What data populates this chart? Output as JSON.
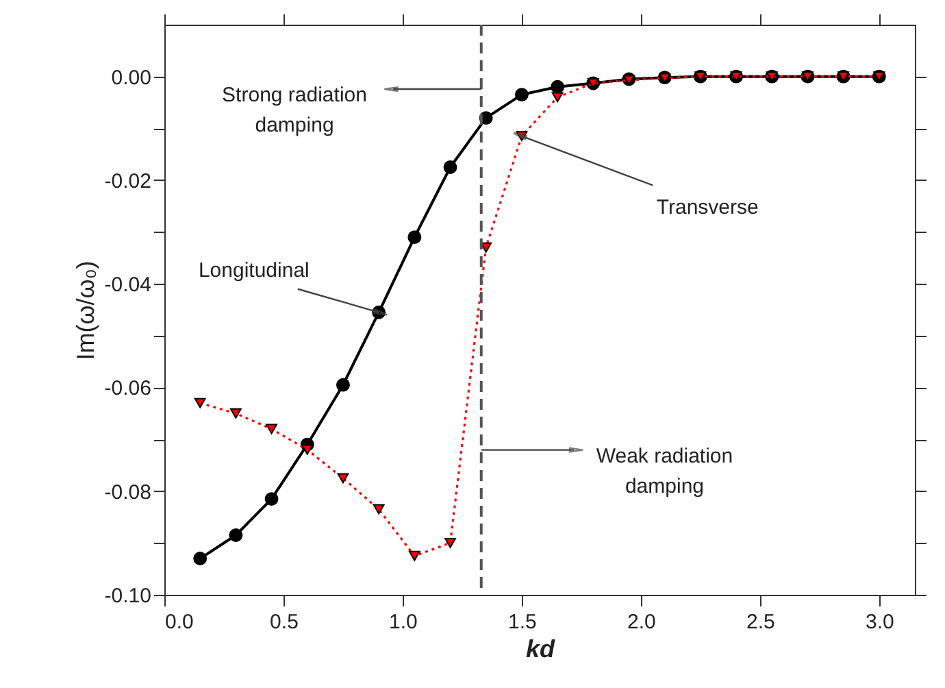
{
  "chart_data": {
    "type": "line",
    "xlabel": "kd",
    "ylabel": "Im(ω/ω₀)",
    "x": [
      0.15,
      0.3,
      0.45,
      0.6,
      0.75,
      0.9,
      1.05,
      1.2,
      1.35,
      1.5,
      1.65,
      1.8,
      1.95,
      2.1,
      2.25,
      2.4,
      2.55,
      2.7,
      2.85,
      3.0
    ],
    "series": [
      {
        "color": "#000000",
        "marker": "circle",
        "line_style": "solid",
        "values": [
          -0.093,
          -0.0885,
          -0.0815,
          -0.071,
          -0.0595,
          -0.0455,
          -0.031,
          -0.0175,
          -0.008,
          -0.0035,
          -0.002,
          -0.0013,
          -0.0005,
          -0.0002,
          0,
          0,
          0,
          0,
          0,
          0
        ]
      },
      {
        "color": "#ff0000",
        "marker": "triangle",
        "line_style": "dotted",
        "values": [
          -0.063,
          -0.065,
          -0.068,
          -0.072,
          -0.0775,
          -0.0835,
          -0.0925,
          -0.09,
          -0.033,
          -0.0115,
          -0.004,
          -0.0013,
          -0.0007,
          -0.0003,
          0,
          0,
          0,
          0,
          0,
          0
        ]
      }
    ],
    "xlim": [
      0,
      3.15
    ],
    "ylim": [
      -0.1,
      0.01
    ],
    "xticks": [
      {
        "value": 0,
        "label": "0.0"
      },
      0.5,
      {
        "value": 1,
        "label": "1.0"
      },
      1.5,
      {
        "value": 2,
        "label": "2.0"
      },
      2.5,
      {
        "value": 3,
        "label": "3.0"
      }
    ],
    "yticks": [
      {
        "value": -0.1,
        "label": "-0.10"
      },
      {
        "value": -0.09,
        "label": null
      },
      {
        "value": -0.08,
        "label": "-0.08"
      },
      {
        "value": -0.07,
        "label": null
      },
      {
        "value": -0.06,
        "label": "-0.06"
      },
      {
        "value": -0.05,
        "label": null
      },
      {
        "value": -0.04,
        "label": "-0.04"
      },
      {
        "value": -0.03,
        "label": null
      },
      {
        "value": -0.02,
        "label": "-0.02"
      },
      {
        "value": -0.01,
        "label": null
      },
      {
        "value": 0,
        "label": "0.00"
      }
    ],
    "ref_lines": [
      {
        "axis": "x",
        "value": 1.33,
        "color": "#555555",
        "line_style": "dashed"
      }
    ],
    "annotations": [
      "Strong radiation damping",
      "Weak radiation damping",
      {
        "text": "Longitudinal",
        "x": 0.9,
        "y": -0.0455
      },
      {
        "text": "Transverse",
        "x": 1.5,
        "y": -0.0115
      }
    ],
    "grid": false
  }
}
